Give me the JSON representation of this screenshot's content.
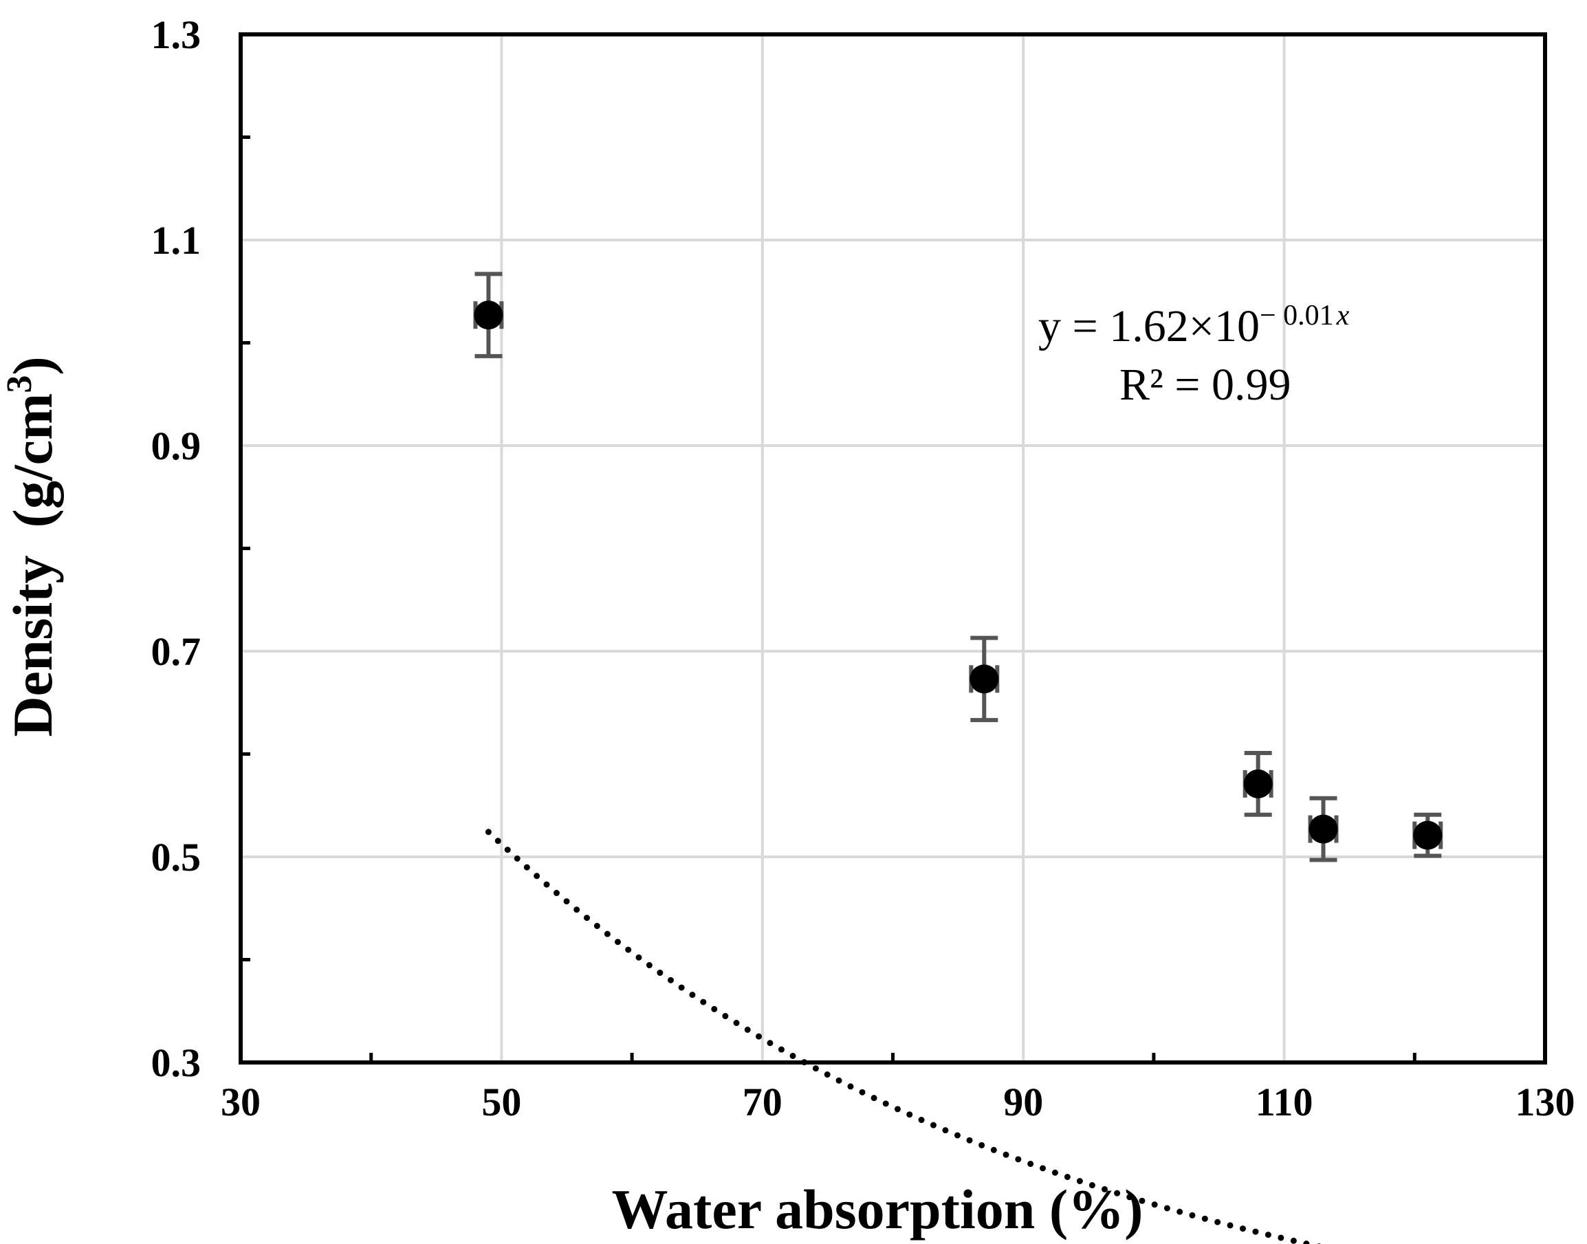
{
  "chart_data": {
    "type": "scatter",
    "title": "",
    "xlabel": "Water absorption (%)",
    "ylabel_main": "Density",
    "ylabel_unit": "(g/cm",
    "ylabel_unit_sup": "3",
    "ylabel_unit_close": ")",
    "xlim": [
      30,
      130
    ],
    "ylim": [
      0.3,
      1.3
    ],
    "x_ticks": [
      30,
      50,
      70,
      90,
      110,
      130
    ],
    "x_tick_labels": [
      "30",
      "50",
      "70",
      "90",
      "110",
      "130"
    ],
    "y_ticks": [
      0.3,
      0.5,
      0.7,
      0.9,
      1.1,
      1.3
    ],
    "y_tick_labels": [
      "0.3",
      "0.5",
      "0.7",
      "0.9",
      "1.1",
      "1.3"
    ],
    "grid": true,
    "series": [
      {
        "x": [
          49,
          87,
          108,
          113,
          121
        ],
        "y": [
          1.027,
          0.673,
          0.571,
          0.527,
          0.521
        ],
        "y_err": [
          0.04,
          0.04,
          0.03,
          0.03,
          0.02
        ],
        "x_err": [
          1,
          1,
          1,
          1,
          1
        ]
      }
    ],
    "trendline": {
      "style": "dotted",
      "model": "exponential",
      "a": 1.62,
      "b": -0.01,
      "x_range": [
        49,
        121
      ]
    },
    "annotations": {
      "equation_prefix": "y = 1.62×10",
      "equation_exponent_num": "− 0.01",
      "equation_exponent_var": "x",
      "r_squared": "R² = 0.99"
    },
    "colors": {
      "marker": "#000000",
      "error_bar": "#555555",
      "grid": "#d9d9d9",
      "axis": "#000000"
    }
  }
}
